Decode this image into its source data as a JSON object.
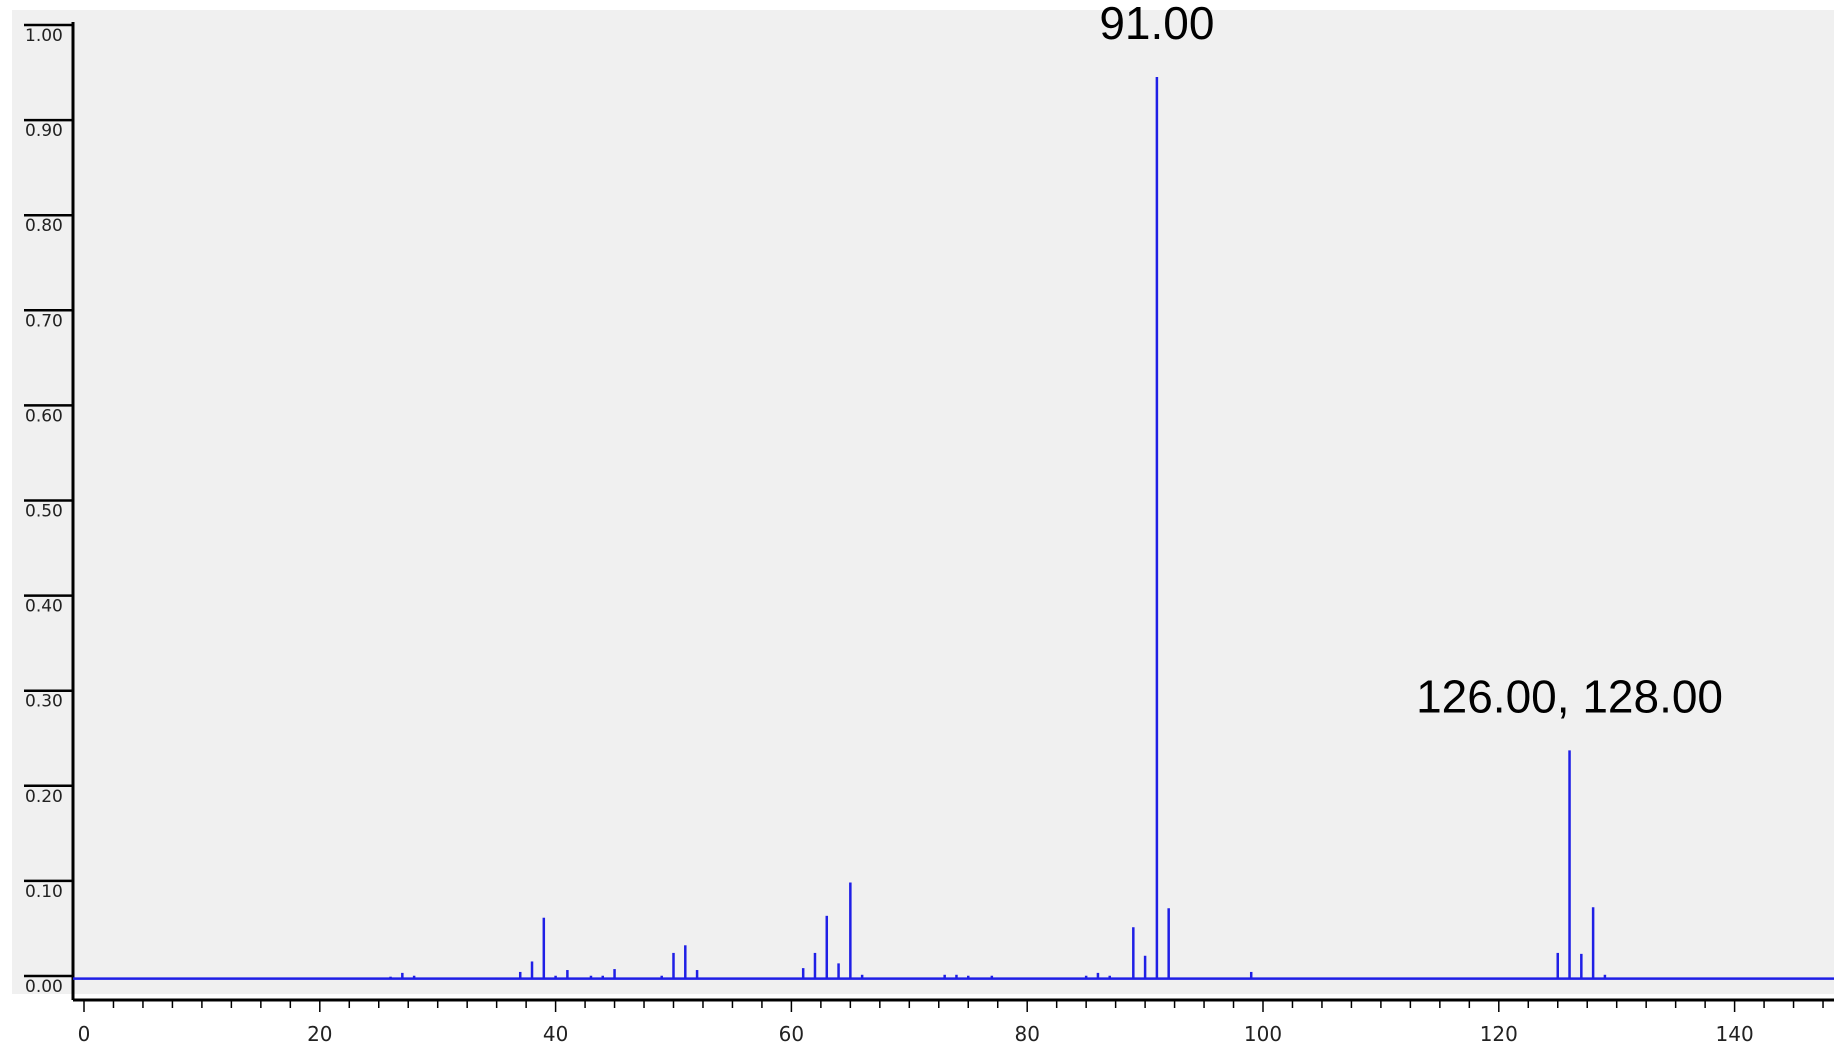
{
  "chart_data": {
    "type": "bar",
    "title": "",
    "xlabel": "",
    "ylabel": "",
    "xlim": [
      -1,
      149
    ],
    "ylim": [
      0,
      1.0
    ],
    "grid": false,
    "legend": "none",
    "baseline": 0.012,
    "colors": {
      "series": "#1f1fe6",
      "plot_background": "#f0f0f0",
      "axis": "#000000"
    },
    "y_ticks": [
      "0.00",
      "0.10",
      "0.20",
      "0.30",
      "0.40",
      "0.50",
      "0.60",
      "0.70",
      "0.80",
      "0.90",
      "1.00"
    ],
    "x_ticks": [
      "0",
      "20",
      "40",
      "60",
      "80",
      "100",
      "120",
      "140"
    ],
    "annotations": [
      {
        "text": "91.00",
        "x": 91
      },
      {
        "text": "126.00, 128.00",
        "x": 126
      }
    ],
    "series": [
      {
        "x": [
          26,
          27,
          28,
          35,
          37,
          38,
          39,
          40,
          41,
          43,
          44,
          45,
          49,
          50,
          51,
          52,
          61,
          62,
          63,
          64,
          65,
          66,
          73,
          74,
          75,
          77,
          85,
          86,
          87,
          89,
          90,
          91,
          92,
          99,
          125,
          126,
          127,
          128,
          129
        ],
        "values": [
          0.014,
          0.018,
          0.015,
          0.013,
          0.019,
          0.03,
          0.076,
          0.015,
          0.021,
          0.015,
          0.015,
          0.022,
          0.015,
          0.039,
          0.047,
          0.021,
          0.023,
          0.039,
          0.078,
          0.028,
          0.113,
          0.016,
          0.016,
          0.016,
          0.015,
          0.015,
          0.015,
          0.018,
          0.015,
          0.066,
          0.036,
          0.96,
          0.086,
          0.019,
          0.039,
          0.252,
          0.038,
          0.087,
          0.016
        ]
      }
    ]
  }
}
